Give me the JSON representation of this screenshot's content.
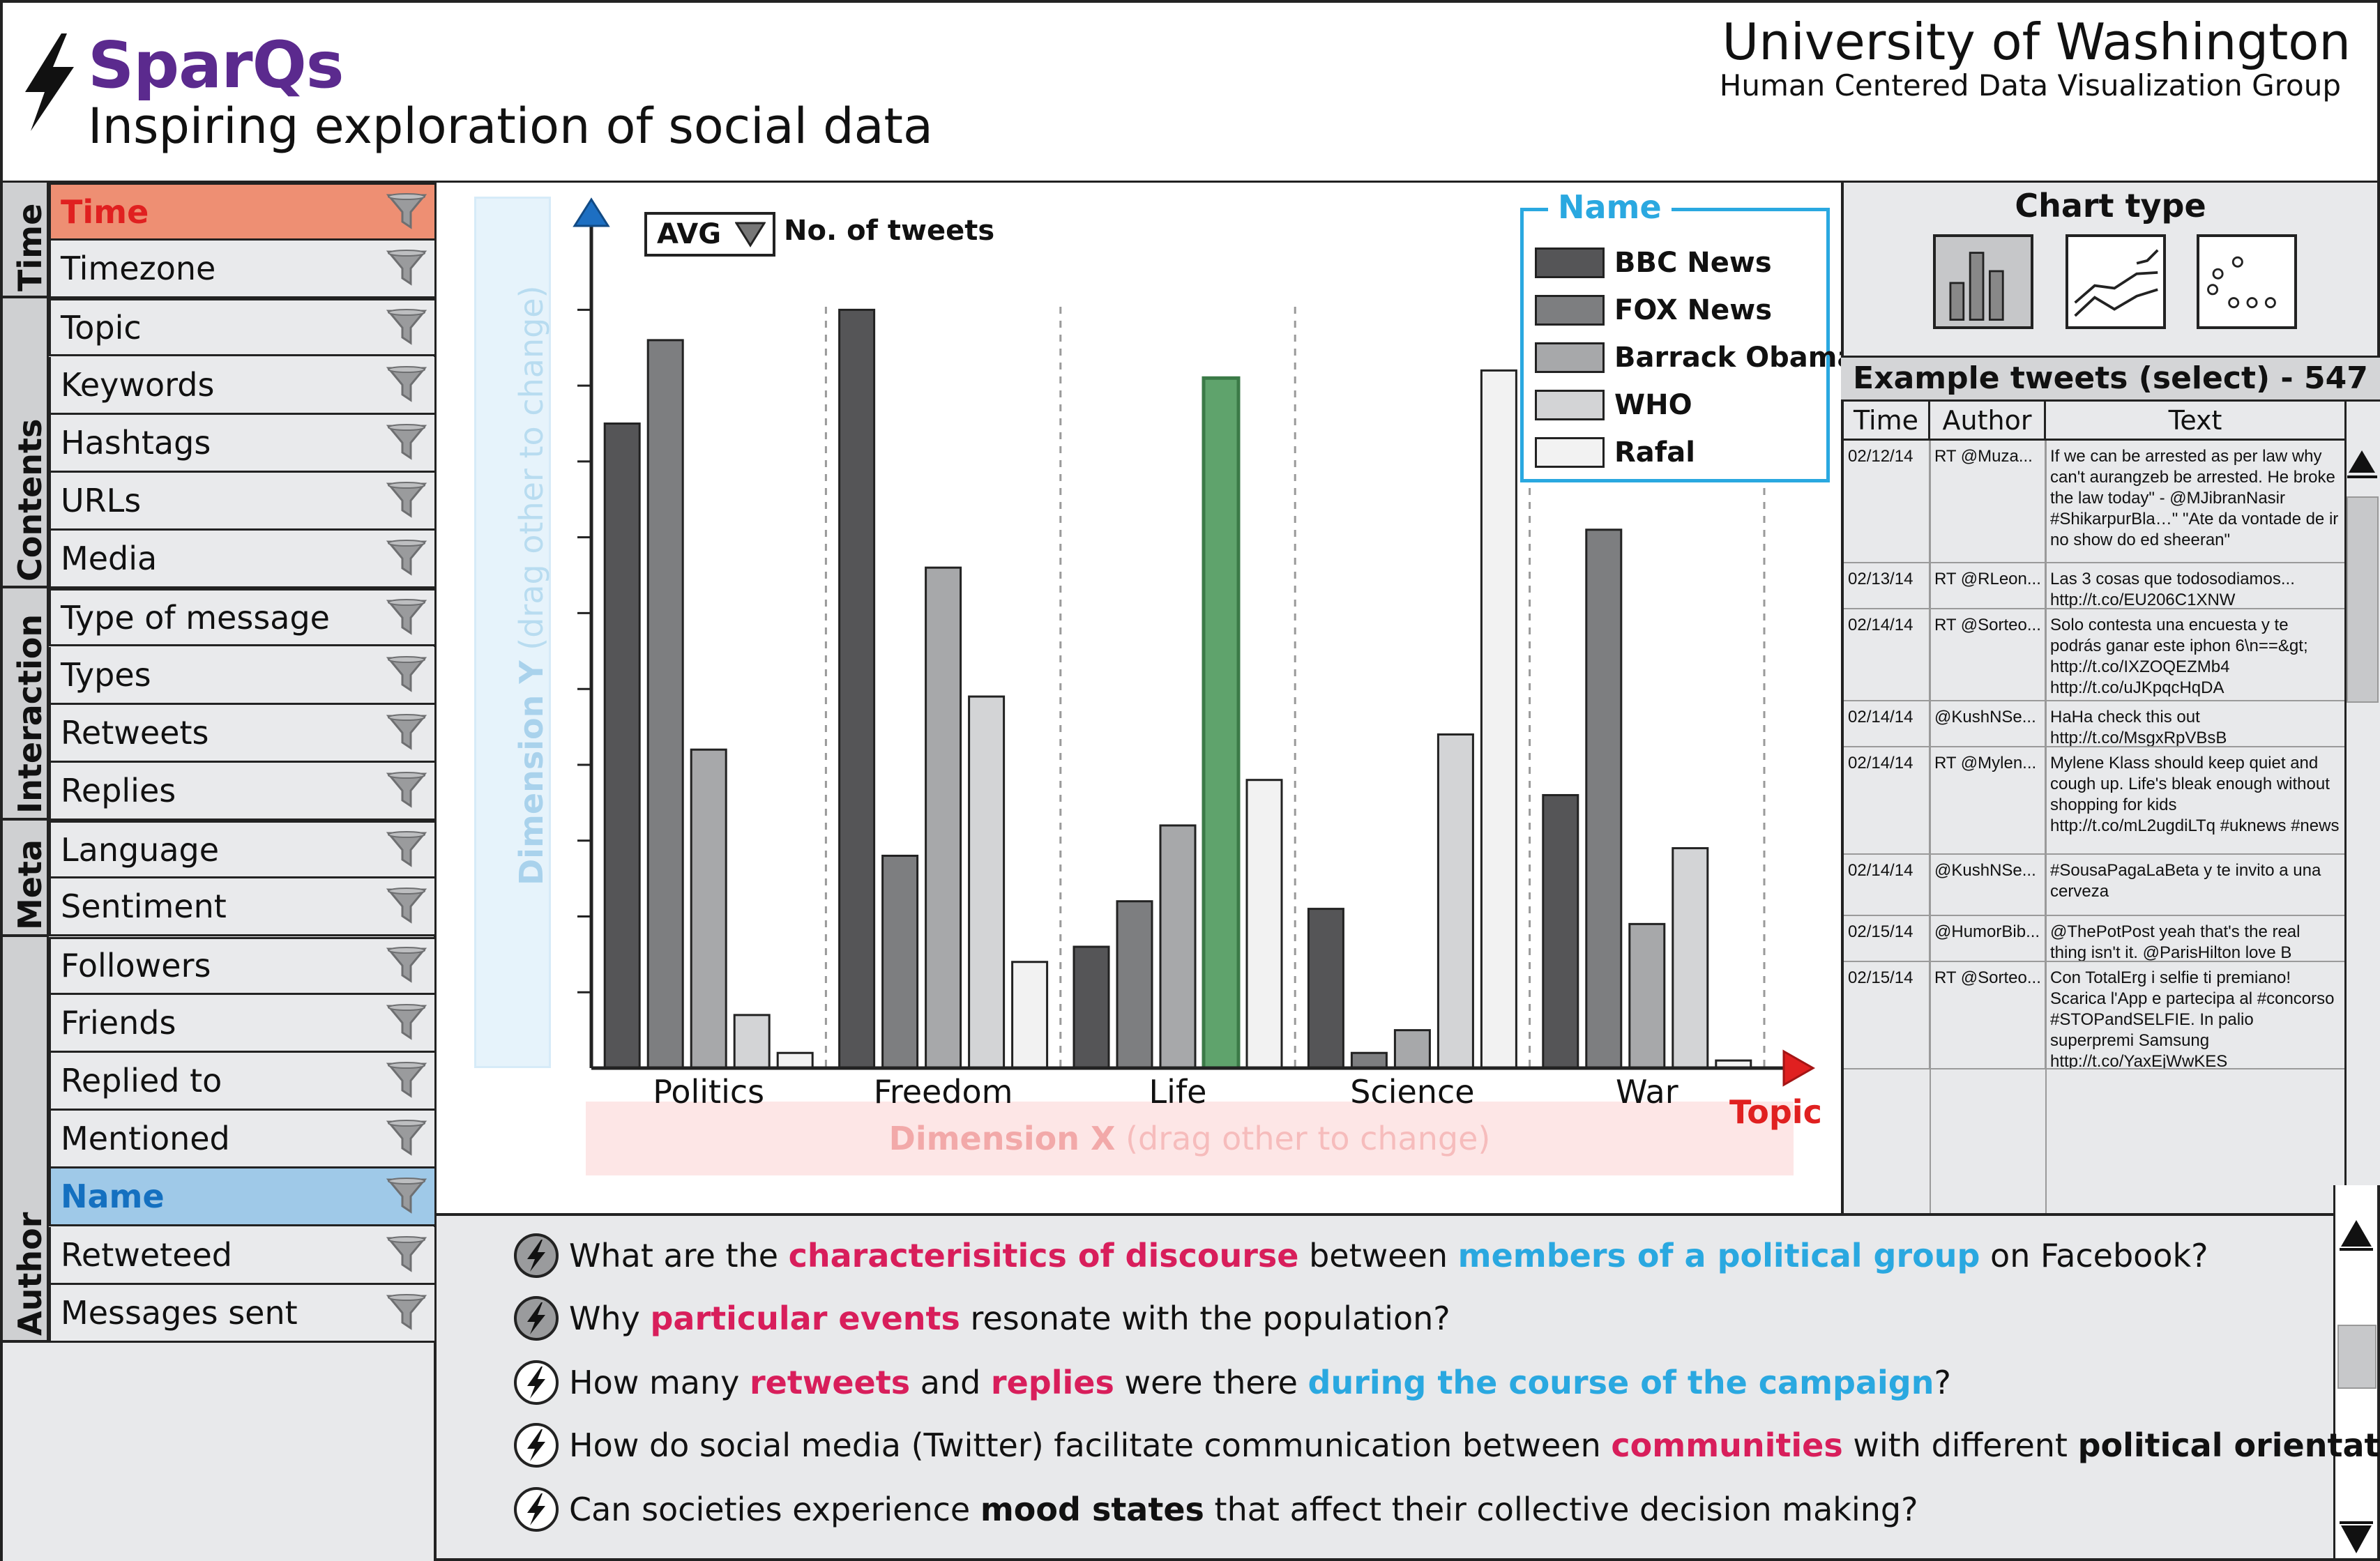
{
  "header": {
    "app_title": "SparQs",
    "app_subtitle": "Inspiring exploration of social data",
    "university": "University of Washington",
    "group": "Human Centered Data Visualization Group",
    "title_color": "#5b2a8e"
  },
  "sidebar": {
    "groups": [
      {
        "label": "Time",
        "fields": [
          "Time",
          "Timezone"
        ]
      },
      {
        "label": "Contents",
        "fields": [
          "Topic",
          "Keywords",
          "Hashtags",
          "URLs",
          "Media"
        ]
      },
      {
        "label": "Interaction",
        "fields": [
          "Type of message",
          "Types",
          "Retweets",
          "Replies"
        ]
      },
      {
        "label": "Meta",
        "fields": [
          "Language",
          "Sentiment"
        ]
      },
      {
        "label": "Author",
        "fields": [
          "Followers",
          "Friends",
          "Replied to",
          "Mentioned",
          "Name",
          "Retweteed",
          "Messages sent"
        ]
      }
    ],
    "selected_x_field": "Time",
    "selected_color_field": "Name",
    "filter_icon": "funnel-icon"
  },
  "chart": {
    "aggregation": "AVG",
    "measure_label": "No. of tweets",
    "dimension_y_label": "Dimension Y",
    "dimension_y_hint": "(drag other to change)",
    "dimension_x_label": "Dimension X",
    "dimension_x_hint": "(drag other to change)",
    "x_axis_title": "Topic",
    "legend_title": "Name",
    "highlight_color": "#5fa36c"
  },
  "chart_data": {
    "type": "bar",
    "categories": [
      "Politics",
      "Freedom",
      "Life",
      "Science",
      "War"
    ],
    "series": [
      {
        "name": "BBC News",
        "color": "#555557",
        "values": [
          85,
          100,
          16,
          21,
          36
        ]
      },
      {
        "name": "FOX News",
        "color": "#7d7e80",
        "values": [
          96,
          28,
          22,
          2,
          71
        ]
      },
      {
        "name": "Barrack Obama",
        "color": "#a7a8aa",
        "values": [
          42,
          66,
          32,
          5,
          19
        ]
      },
      {
        "name": "WHO",
        "color": "#d3d4d6",
        "values": [
          7,
          49,
          91,
          44,
          29
        ]
      },
      {
        "name": "Rafal",
        "color": "#f2f2f2",
        "values": [
          2,
          14,
          38,
          92,
          1
        ]
      }
    ],
    "highlighted": {
      "series": "WHO",
      "category": "Life"
    },
    "xlabel": "Topic",
    "ylabel": "No. of tweets",
    "ylim": [
      0,
      105
    ],
    "y_ticks": [
      0,
      10,
      20,
      30,
      40,
      50,
      60,
      70,
      80,
      90,
      100
    ],
    "grid": false,
    "category_separators": true,
    "legend_position": "top-right"
  },
  "chart_type_panel": {
    "title": "Chart type",
    "options": [
      "bar-chart-icon",
      "line-chart-icon",
      "scatter-plot-icon"
    ],
    "selected": "bar-chart-icon"
  },
  "tweets": {
    "title": "Example tweets (select) - 547",
    "columns": [
      "Time",
      "Author",
      "Text"
    ],
    "rows": [
      {
        "time": "02/12/14",
        "author": "RT @Muza...",
        "text": "If we can be arrested as per law why can't aurangzeb be arrested. He broke the law today\" - @MJibranNasir #ShikarpurBla…\" \"Ate da vontade de ir no show do ed sheeran\""
      },
      {
        "time": "02/13/14",
        "author": "RT @RLeon...",
        "text": "Las 3 cosas que todosodiamos... http://t.co/EU206C1XNW"
      },
      {
        "time": "02/14/14",
        "author": "RT @Sorteo...",
        "text": "Solo contesta una encuesta y te podrás ganar este iphon 6\\n==&gt; http://t.co/IXZOQEZMb4 http://t.co/uJKpqcHqDA"
      },
      {
        "time": "02/14/14",
        "author": "@KushNSe...",
        "text": "HaHa check this out http://t.co/MsgxRpVBsB"
      },
      {
        "time": "02/14/14",
        "author": "RT @Mylen...",
        "text": "Mylene Klass should keep quiet and cough up. Life's bleak enough without shopping for kids http://t.co/mL2ugdiLTq #uknews #news"
      },
      {
        "time": "02/14/14",
        "author": "@KushNSe...",
        "text": "#SousaPagaLaBeta y te invito a una cerveza"
      },
      {
        "time": "02/15/14",
        "author": "@HumorBib...",
        "text": "@ThePotPost yeah that's the real thing isn't it. @ParisHilton love B"
      },
      {
        "time": "02/15/14",
        "author": "RT @Sorteo...",
        "text": "Con TotalErg i selfie ti premiano! Scarica l'App e partecipa al #concorso #STOPandSELFIE. In palio superpremi Samsung http://t.co/YaxEjWwKES"
      }
    ]
  },
  "questions": [
    [
      {
        "t": "What are the "
      },
      {
        "t": "characterisitics of discourse",
        "s": "pink"
      },
      {
        "t": " between "
      },
      {
        "t": "members of a political group",
        "s": "blue"
      },
      {
        "t": " on Facebook?"
      }
    ],
    [
      {
        "t": "Why "
      },
      {
        "t": "particular events",
        "s": "pink"
      },
      {
        "t": " resonate with the population?"
      }
    ],
    [
      {
        "t": "How many "
      },
      {
        "t": "retweets",
        "s": "pink"
      },
      {
        "t": " and "
      },
      {
        "t": "replies",
        "s": "pink"
      },
      {
        "t": " were there "
      },
      {
        "t": "during the course of the campaign",
        "s": "blue"
      },
      {
        "t": "?"
      }
    ],
    [
      {
        "t": "How do social media (Twitter) facilitate communication between "
      },
      {
        "t": "communities",
        "s": "pink"
      },
      {
        "t": " with different "
      },
      {
        "t": "political orientations",
        "s": "bold"
      },
      {
        "t": "?"
      }
    ],
    [
      {
        "t": "Can societies experience "
      },
      {
        "t": "mood states",
        "s": "bold"
      },
      {
        "t": " that affect their collective decision making?"
      }
    ]
  ],
  "colors": {
    "accent_pink": "#d81e5b",
    "accent_blue": "#2aa8e0",
    "x_selected_bg": "#ee8f73",
    "color_selected_bg": "#9fc9e8",
    "panel_bg": "#e8e9eb"
  }
}
